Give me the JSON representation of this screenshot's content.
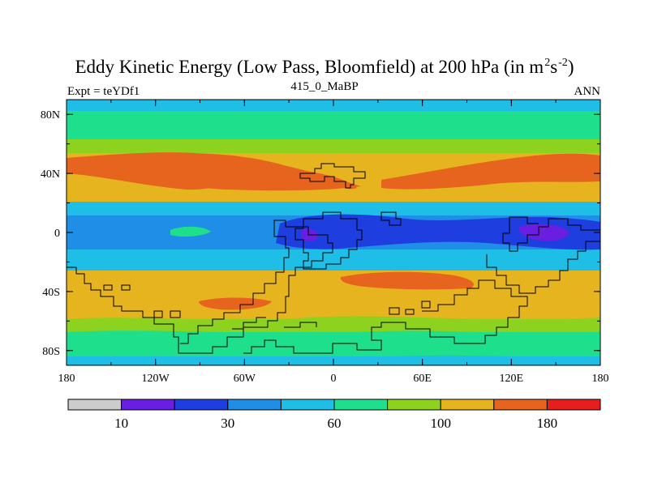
{
  "chart_data": {
    "type": "heatmap",
    "title": "Eddy Kinetic Energy (Low Pass, Bloomfield) at 200 hPa (in m",
    "title_sup1": "2",
    "title_mid": "s",
    "title_sup2": "-2",
    "title_end": ")",
    "subtitle": "415_0_MaBP",
    "left_label": "Expt = teYDf1",
    "right_label": "ANN",
    "x_ticks": [
      "180",
      "120W",
      "60W",
      "0",
      "60E",
      "120E",
      "180"
    ],
    "x_tick_values": [
      -180,
      -120,
      -60,
      0,
      60,
      120,
      180
    ],
    "y_ticks": [
      "80N",
      "40N",
      "0",
      "40S",
      "80S"
    ],
    "y_tick_values": [
      80,
      40,
      0,
      -40,
      -80
    ],
    "xlim": [
      -180,
      180
    ],
    "ylim": [
      -90,
      90
    ],
    "colorbar": {
      "colors": [
        "#cccccc",
        "#6a1ee0",
        "#1e3ee0",
        "#1e8ee6",
        "#1ebee6",
        "#1ee08c",
        "#8cd21e",
        "#e6b41e",
        "#e6641e",
        "#e61e1e"
      ],
      "labels": [
        {
          "text": "10",
          "boundary": 1
        },
        {
          "text": "30",
          "boundary": 3
        },
        {
          "text": "60",
          "boundary": 5
        },
        {
          "text": "100",
          "boundary": 7
        },
        {
          "text": "180",
          "boundary": 9
        }
      ]
    },
    "field_bands": [
      {
        "lat_range": [
          90,
          75
        ],
        "level": "teal"
      },
      {
        "lat_range": [
          75,
          62
        ],
        "level": "green"
      },
      {
        "lat_range": [
          62,
          50
        ],
        "level": "yellow-green"
      },
      {
        "lat_range": [
          50,
          25
        ],
        "level": "orange"
      },
      {
        "lat_range": [
          25,
          12
        ],
        "level": "teal"
      },
      {
        "lat_range": [
          12,
          -12
        ],
        "level": "blue"
      },
      {
        "lat_range": [
          -12,
          -25
        ],
        "level": "teal"
      },
      {
        "lat_range": [
          -25,
          -62
        ],
        "level": "orange"
      },
      {
        "lat_range": [
          -62,
          -75
        ],
        "level": "yellow-green"
      },
      {
        "lat_range": [
          -75,
          -90
        ],
        "level": "green"
      }
    ]
  }
}
